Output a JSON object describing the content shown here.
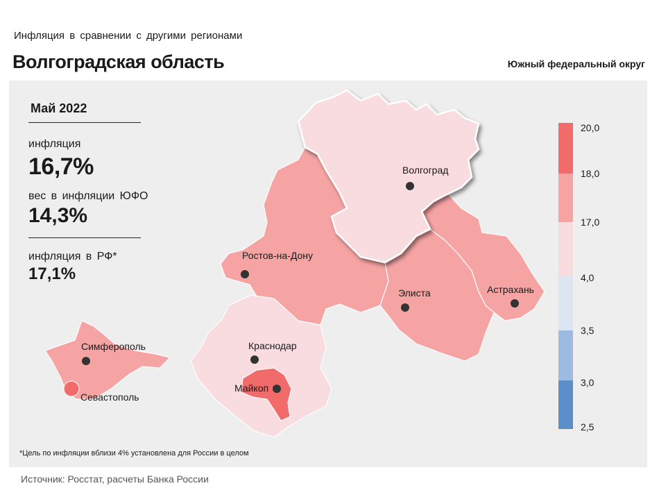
{
  "header": {
    "subtitle": "Инфляция  в сравнении  с другими  регионами",
    "title": "Волгоградская область",
    "district": "Южный федеральный округ"
  },
  "stats": {
    "period": "Май 2022",
    "inflation_label": "инфляция",
    "inflation_value": "16,7%",
    "weight_label": "вес в инфляции  ЮФО",
    "weight_value": "14,3%",
    "rf_label": "инфляция  в РФ*",
    "rf_value": "17,1%"
  },
  "cities": [
    {
      "name": "Волгоград"
    },
    {
      "name": "Ростов-на-Дону"
    },
    {
      "name": "Элиста"
    },
    {
      "name": "Астрахань"
    },
    {
      "name": "Краснодар"
    },
    {
      "name": "Майкоп"
    },
    {
      "name": "Симферополь"
    },
    {
      "name": "Севастополь"
    }
  ],
  "legend": {
    "ticks": [
      "20,0",
      "18,0",
      "17,0",
      "4,0",
      "3,5",
      "3,0",
      "2,5"
    ],
    "colors": [
      "#f26b6b",
      "#f5a3a3",
      "#f8dcdf",
      "#dde4f2",
      "#9dbbe0",
      "#5b8fca"
    ]
  },
  "region_colors": {
    "volgograd": "#f8dcdf",
    "rostov": "#f5a3a3",
    "kalmykia": "#f5a3a3",
    "astrakhan": "#f5a3a3",
    "krasnodar": "#f8dcdf",
    "adygea": "#f26b6b",
    "crimea": "#f5a3a3",
    "sevastopol": "#f26b6b"
  },
  "footnote": "*Цель по инфляции вблизи 4% установлена для России в целом",
  "source": "Источник: Росстат, расчеты Банка России"
}
